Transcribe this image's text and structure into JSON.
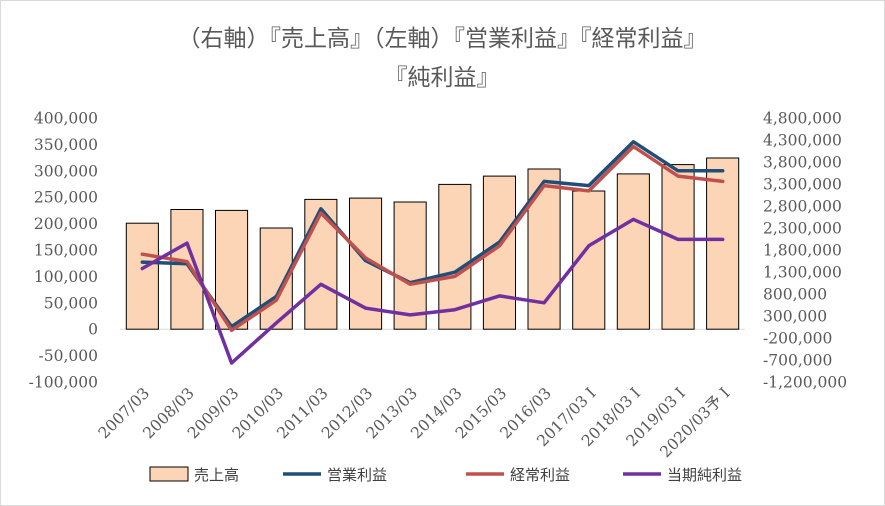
{
  "chart_data": {
    "type": "bar",
    "title_line1": "（右軸）『売上高』（左軸）『営業利益』『経常利益』",
    "title_line2": "『純利益』",
    "categories": [
      "2007/03",
      "2008/03",
      "2009/03",
      "2010/03",
      "2011/03",
      "2012/03",
      "2013/03",
      "2014/03",
      "2015/03",
      "2016/03",
      "2017/03 I",
      "2018/03 I",
      "2019/03 I",
      "2020/03予 I"
    ],
    "left_axis": {
      "ticks": [
        "400,000",
        "350,000",
        "300,000",
        "250,000",
        "200,000",
        "150,000",
        "100,000",
        "50,000",
        "0",
        "-50,000",
        "-100,000"
      ],
      "ylim": [
        -100000,
        400000
      ]
    },
    "right_axis": {
      "ticks": [
        "4,800,000",
        "4,300,000",
        "3,800,000",
        "3,300,000",
        "2,800,000",
        "2,300,000",
        "1,800,000",
        "1,300,000",
        "800,000",
        "300,000",
        "-200,000",
        "-700,000",
        "-1,200,000"
      ],
      "ylim": [
        -1200000,
        4800000
      ]
    },
    "series": [
      {
        "name": "売上高",
        "kind": "bar",
        "axis": "right",
        "color": "#fbd5b5",
        "values": [
          2410000,
          2720000,
          2700000,
          2300000,
          2950000,
          2980000,
          2890000,
          3290000,
          3480000,
          3640000,
          3140000,
          3530000,
          3740000,
          3890000
        ]
      },
      {
        "name": "営業利益",
        "kind": "line",
        "axis": "left",
        "color": "#1f4e79",
        "values": [
          127000,
          124000,
          5000,
          62000,
          228000,
          130000,
          88000,
          108000,
          165000,
          280000,
          272000,
          355000,
          300000,
          300000
        ]
      },
      {
        "name": "経常利益",
        "kind": "line",
        "axis": "left",
        "color": "#c0504d",
        "values": [
          142000,
          128000,
          -2000,
          55000,
          220000,
          135000,
          85000,
          100000,
          158000,
          272000,
          262000,
          346000,
          290000,
          280000
        ]
      },
      {
        "name": "当期純利益",
        "kind": "line",
        "axis": "left",
        "color": "#7030a0",
        "values": [
          115000,
          163000,
          -64000,
          12000,
          85000,
          40000,
          27000,
          37000,
          63000,
          50000,
          158000,
          208000,
          170000,
          170000
        ]
      }
    ]
  }
}
